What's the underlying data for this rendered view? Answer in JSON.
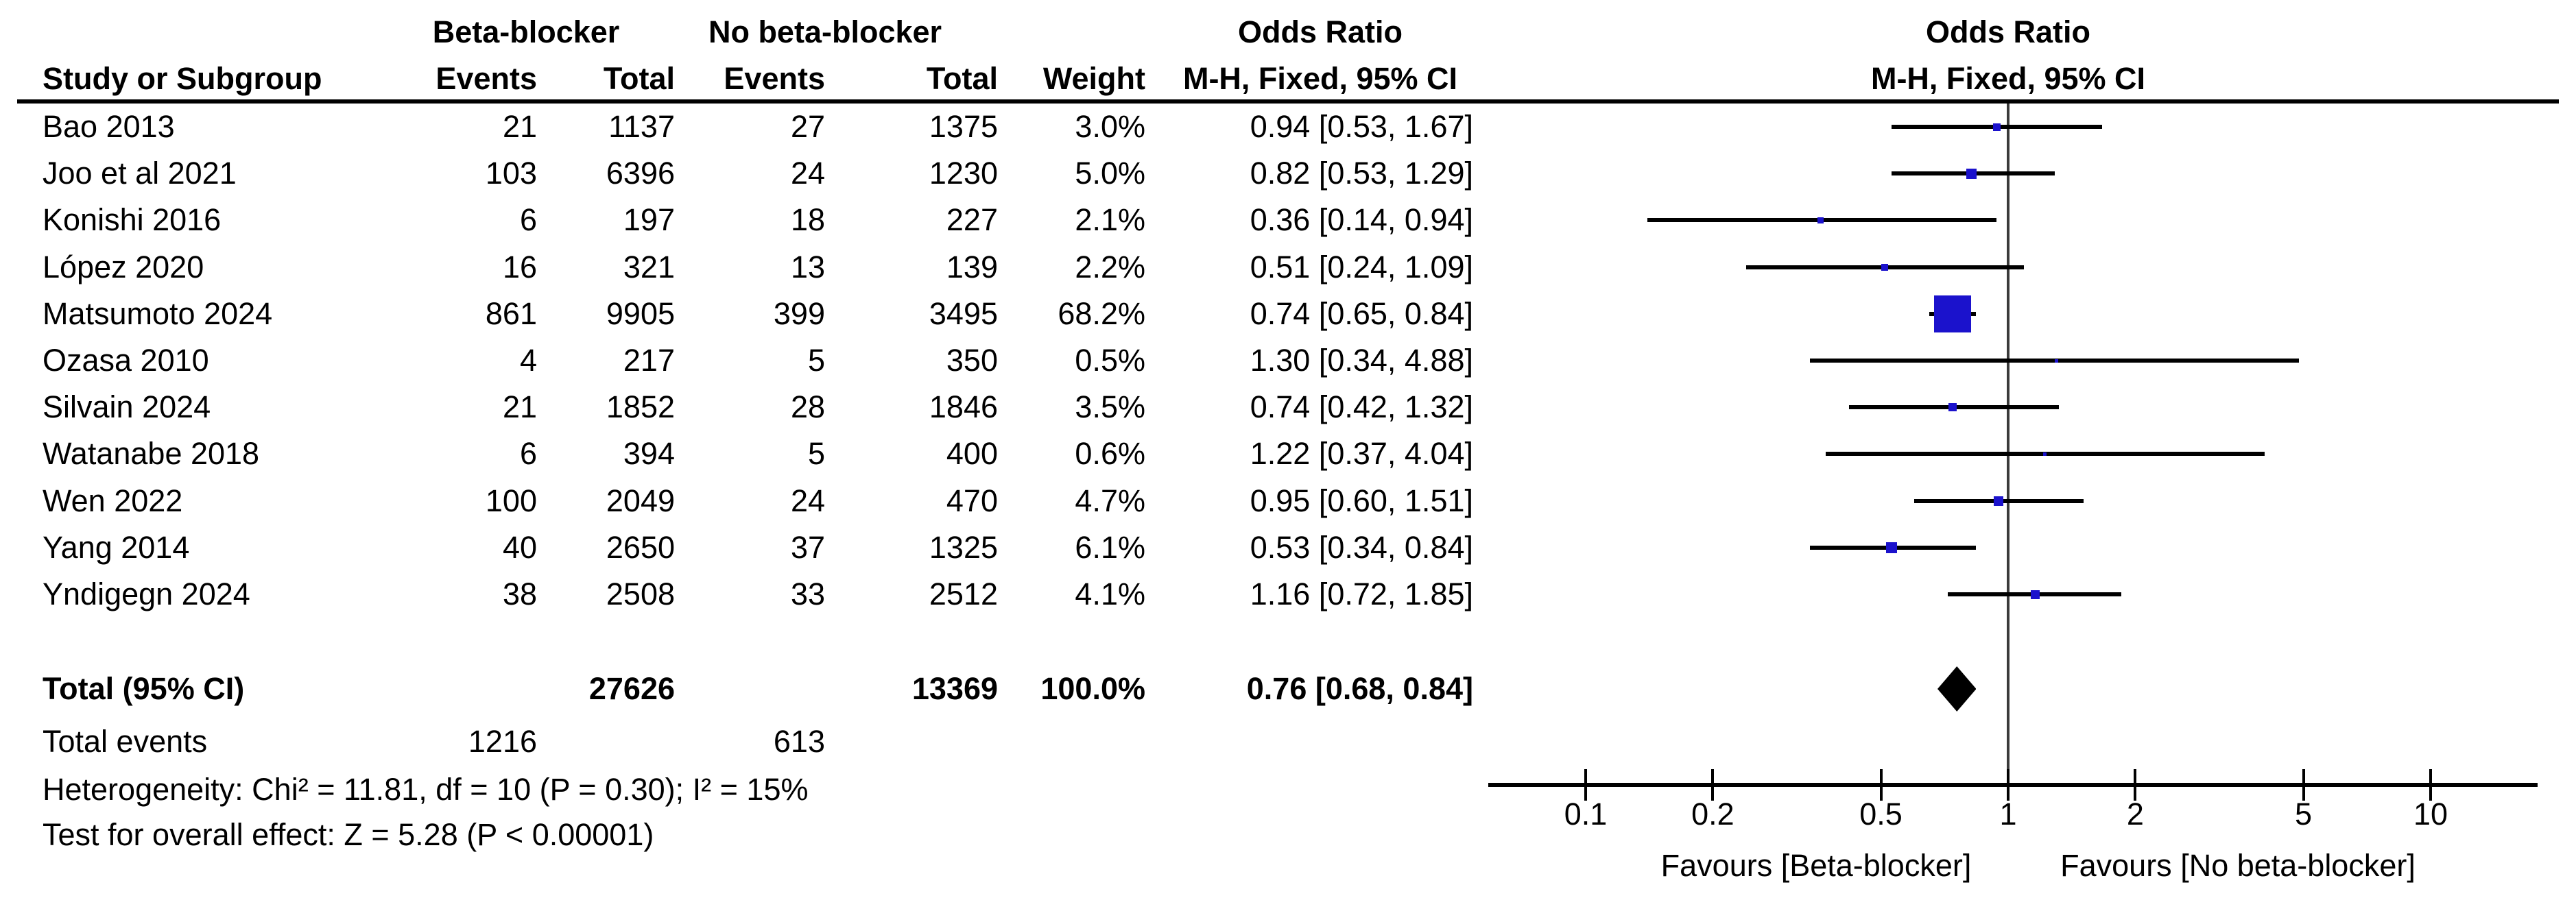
{
  "table": {
    "study_header": "Study or Subgroup",
    "group1": "Beta-blocker",
    "group2": "No beta-blocker",
    "events_header": "Events",
    "total_header": "Total",
    "weight_header": "Weight",
    "or_header": "Odds Ratio",
    "method_header": "M-H, Fixed, 95% CI"
  },
  "totals": {
    "label": "Total (95% CI)",
    "total1": "27626",
    "total2": "13369",
    "weight": "100.0%",
    "ci_text": "0.76 [0.68, 0.84]",
    "or": 0.76,
    "ci_low": 0.68,
    "ci_high": 0.84,
    "events_label": "Total events",
    "events1": "1216",
    "events2": "613"
  },
  "footnotes": {
    "heterogeneity": "Heterogeneity: Chi² = 11.81, df = 10 (P = 0.30); I² = 15%",
    "overall_effect": "Test for overall effect: Z = 5.28 (P < 0.00001)"
  },
  "axis": {
    "ticks": [
      "0.1",
      "0.2",
      "0.5",
      "1",
      "2",
      "5",
      "10"
    ],
    "tick_values": [
      0.1,
      0.2,
      0.5,
      1,
      2,
      5,
      10
    ],
    "favours_left": "Favours [Beta-blocker]",
    "favours_right": "Favours [No beta-blocker]"
  },
  "colors": {
    "marker_blue": "#1b12cc",
    "diamond_black": "#000000",
    "line_black": "#000000"
  },
  "chart_data": {
    "type": "scatter",
    "subtype": "forest-plot",
    "x_scale": "log10",
    "x_ticks": [
      0.1,
      0.2,
      0.5,
      1,
      2,
      5,
      10
    ],
    "xlabel_left": "Favours [Beta-blocker]",
    "xlabel_right": "Favours [No beta-blocker]",
    "effect_measure": "Odds Ratio, M-H, Fixed, 95% CI",
    "studies": [
      {
        "name": "Bao 2013",
        "events1": "21",
        "total1": "1137",
        "events2": "27",
        "total2": "1375",
        "weight_text": "3.0%",
        "weight_pct": 3.0,
        "or": 0.94,
        "ci_low": 0.53,
        "ci_high": 1.67,
        "ci_text": "0.94 [0.53, 1.67]"
      },
      {
        "name": "Joo et al 2021",
        "events1": "103",
        "total1": "6396",
        "events2": "24",
        "total2": "1230",
        "weight_text": "5.0%",
        "weight_pct": 5.0,
        "or": 0.82,
        "ci_low": 0.53,
        "ci_high": 1.29,
        "ci_text": "0.82 [0.53, 1.29]"
      },
      {
        "name": "Konishi 2016",
        "events1": "6",
        "total1": "197",
        "events2": "18",
        "total2": "227",
        "weight_text": "2.1%",
        "weight_pct": 2.1,
        "or": 0.36,
        "ci_low": 0.14,
        "ci_high": 0.94,
        "ci_text": "0.36 [0.14, 0.94]"
      },
      {
        "name": "López 2020",
        "events1": "16",
        "total1": "321",
        "events2": "13",
        "total2": "139",
        "weight_text": "2.2%",
        "weight_pct": 2.2,
        "or": 0.51,
        "ci_low": 0.24,
        "ci_high": 1.09,
        "ci_text": "0.51 [0.24, 1.09]"
      },
      {
        "name": "Matsumoto 2024",
        "events1": "861",
        "total1": "9905",
        "events2": "399",
        "total2": "3495",
        "weight_text": "68.2%",
        "weight_pct": 68.2,
        "or": 0.74,
        "ci_low": 0.65,
        "ci_high": 0.84,
        "ci_text": "0.74 [0.65, 0.84]"
      },
      {
        "name": "Ozasa 2010",
        "events1": "4",
        "total1": "217",
        "events2": "5",
        "total2": "350",
        "weight_text": "0.5%",
        "weight_pct": 0.5,
        "or": 1.3,
        "ci_low": 0.34,
        "ci_high": 4.88,
        "ci_text": "1.30 [0.34, 4.88]"
      },
      {
        "name": "Silvain 2024",
        "events1": "21",
        "total1": "1852",
        "events2": "28",
        "total2": "1846",
        "weight_text": "3.5%",
        "weight_pct": 3.5,
        "or": 0.74,
        "ci_low": 0.42,
        "ci_high": 1.32,
        "ci_text": "0.74 [0.42, 1.32]"
      },
      {
        "name": "Watanabe 2018",
        "events1": "6",
        "total1": "394",
        "events2": "5",
        "total2": "400",
        "weight_text": "0.6%",
        "weight_pct": 0.6,
        "or": 1.22,
        "ci_low": 0.37,
        "ci_high": 4.04,
        "ci_text": "1.22 [0.37, 4.04]"
      },
      {
        "name": "Wen 2022",
        "events1": "100",
        "total1": "2049",
        "events2": "24",
        "total2": "470",
        "weight_text": "4.7%",
        "weight_pct": 4.7,
        "or": 0.95,
        "ci_low": 0.6,
        "ci_high": 1.51,
        "ci_text": "0.95 [0.60, 1.51]"
      },
      {
        "name": "Yang 2014",
        "events1": "40",
        "total1": "2650",
        "events2": "37",
        "total2": "1325",
        "weight_text": "6.1%",
        "weight_pct": 6.1,
        "or": 0.53,
        "ci_low": 0.34,
        "ci_high": 0.84,
        "ci_text": "0.53 [0.34, 0.84]"
      },
      {
        "name": "Yndigegn 2024",
        "events1": "38",
        "total1": "2508",
        "events2": "33",
        "total2": "2512",
        "weight_text": "4.1%",
        "weight_pct": 4.1,
        "or": 1.16,
        "ci_low": 0.72,
        "ci_high": 1.85,
        "ci_text": "1.16 [0.72, 1.85]"
      }
    ],
    "total": {
      "name": "Total (95% CI)",
      "or": 0.76,
      "ci_low": 0.68,
      "ci_high": 0.84,
      "weight_pct": 100.0,
      "ci_text": "0.76 [0.68, 0.84]"
    }
  }
}
